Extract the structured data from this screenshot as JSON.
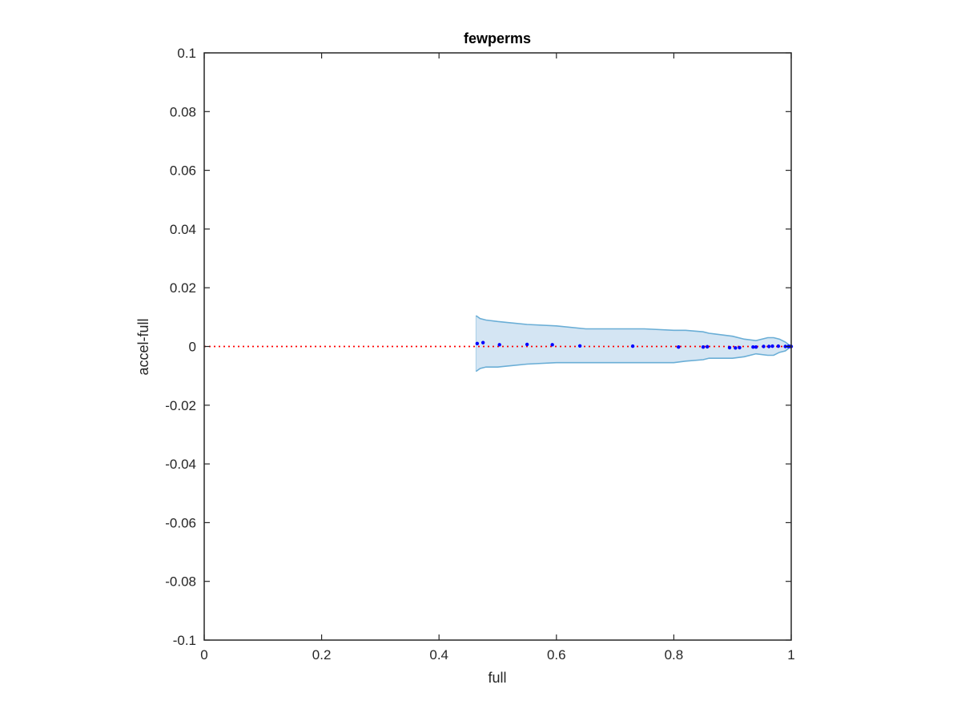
{
  "chart_data": {
    "type": "scatter",
    "title": "fewperms",
    "xlabel": "full",
    "ylabel": "accel-full",
    "xlim": [
      0,
      1
    ],
    "ylim": [
      -0.1,
      0.1
    ],
    "xticks": [
      0,
      0.2,
      0.4,
      0.6,
      0.8,
      1
    ],
    "xtick_labels": [
      "0",
      "0.2",
      "0.4",
      "0.6",
      "0.8",
      "1"
    ],
    "yticks": [
      0.1,
      0.08,
      0.06,
      0.04,
      0.02,
      0,
      -0.02,
      -0.04,
      -0.06,
      -0.08,
      -0.1
    ],
    "ytick_labels": [
      "0.1",
      "0.08",
      "0.06",
      "0.04",
      "0.02",
      "0",
      "-0.02",
      "-0.04",
      "-0.06",
      "-0.08",
      "-0.1"
    ],
    "grid": false,
    "box": true,
    "reference_line": {
      "y": 0,
      "style": "dotted",
      "color": "#ff0000"
    },
    "band": {
      "color": "#c6dcef",
      "edge_color": "#6aaed6",
      "x": [
        0.463,
        0.47,
        0.48,
        0.5,
        0.55,
        0.6,
        0.65,
        0.7,
        0.75,
        0.8,
        0.82,
        0.85,
        0.86,
        0.9,
        0.92,
        0.94,
        0.96,
        0.97,
        0.98,
        0.99,
        1.0
      ],
      "upper": [
        0.0105,
        0.0095,
        0.009,
        0.0085,
        0.0075,
        0.007,
        0.006,
        0.006,
        0.006,
        0.0055,
        0.0055,
        0.005,
        0.0045,
        0.0035,
        0.0025,
        0.002,
        0.003,
        0.003,
        0.0025,
        0.0015,
        0.0
      ],
      "lower": [
        -0.0085,
        -0.0075,
        -0.007,
        -0.007,
        -0.006,
        -0.0055,
        -0.0055,
        -0.0055,
        -0.0055,
        -0.0055,
        -0.005,
        -0.0045,
        -0.004,
        -0.004,
        -0.0035,
        -0.0025,
        -0.003,
        -0.003,
        -0.002,
        -0.0015,
        0.0
      ]
    },
    "series": [
      {
        "color": "#0000ff",
        "points": [
          [
            0.465,
            0.001
          ],
          [
            0.475,
            0.0013
          ],
          [
            0.503,
            0.0006
          ],
          [
            0.55,
            0.0007
          ],
          [
            0.593,
            0.0006
          ],
          [
            0.64,
            0.0002
          ],
          [
            0.73,
            0.0001
          ],
          [
            0.808,
            -0.0002
          ],
          [
            0.85,
            -0.0002
          ],
          [
            0.857,
            -0.0001
          ],
          [
            0.895,
            -0.0004
          ],
          [
            0.905,
            -0.0005
          ],
          [
            0.912,
            -0.0004
          ],
          [
            0.935,
            -0.0002
          ],
          [
            0.94,
            -0.0002
          ],
          [
            0.953,
            0.0
          ],
          [
            0.962,
            0.0
          ],
          [
            0.968,
            0.0001
          ],
          [
            0.978,
            0.0001
          ],
          [
            0.99,
            0.0
          ],
          [
            0.995,
            0.0
          ],
          [
            0.998,
            0.0
          ],
          [
            1.0,
            0.0
          ]
        ]
      }
    ]
  }
}
